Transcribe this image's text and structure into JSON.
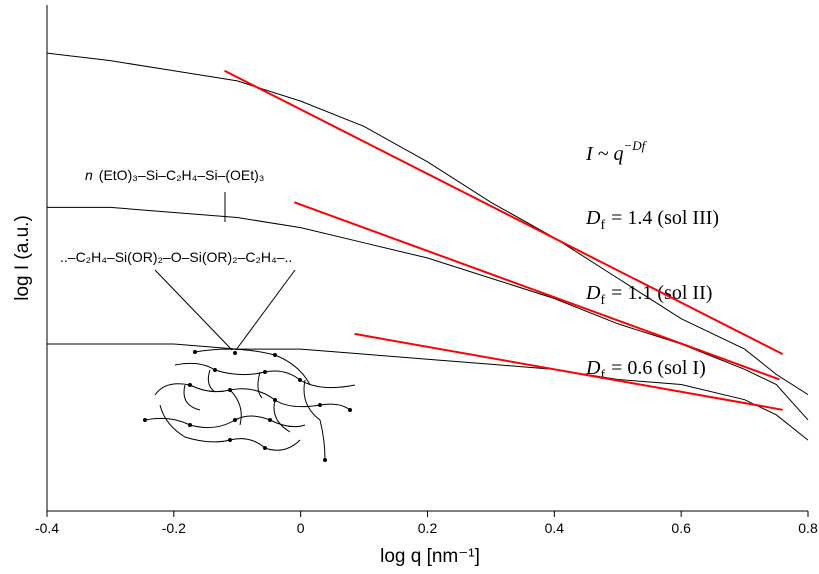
{
  "chart_data": {
    "type": "line",
    "xlabel": "log q [nm⁻¹]",
    "ylabel": "log I (a.u.)",
    "xlim": [
      -0.4,
      0.8
    ],
    "xticks": [
      -0.4,
      -0.2,
      0,
      0.2,
      0.4,
      0.6,
      0.8
    ],
    "ylim": [
      0,
      1
    ],
    "series": [
      {
        "color": "#000000",
        "x": [
          -0.4,
          -0.3,
          -0.2,
          -0.1,
          0,
          0.1,
          0.2,
          0.3,
          0.4,
          0.5,
          0.6,
          0.7,
          0.75,
          0.8
        ],
        "values": [
          0.905,
          0.89,
          0.87,
          0.85,
          0.81,
          0.76,
          0.69,
          0.61,
          0.54,
          0.46,
          0.38,
          0.32,
          0.27,
          0.23
        ]
      },
      {
        "color": "#000000",
        "x": [
          -0.4,
          -0.3,
          -0.2,
          -0.1,
          0,
          0.1,
          0.2,
          0.3,
          0.4,
          0.5,
          0.6,
          0.7,
          0.75,
          0.8
        ],
        "values": [
          0.6,
          0.6,
          0.59,
          0.58,
          0.56,
          0.53,
          0.5,
          0.46,
          0.42,
          0.37,
          0.33,
          0.28,
          0.25,
          0.18
        ]
      },
      {
        "color": "#000000",
        "x": [
          -0.4,
          -0.3,
          -0.2,
          -0.1,
          0,
          0.1,
          0.2,
          0.3,
          0.4,
          0.5,
          0.6,
          0.7,
          0.75,
          0.8
        ],
        "values": [
          0.33,
          0.33,
          0.33,
          0.32,
          0.32,
          0.31,
          0.3,
          0.29,
          0.28,
          0.26,
          0.25,
          0.22,
          0.19,
          0.14
        ]
      },
      {
        "color": "#ff0000",
        "x": [
          -0.12,
          0.76
        ],
        "values": [
          0.87,
          0.31
        ]
      },
      {
        "color": "#ff0000",
        "x": [
          -0.01,
          0.755
        ],
        "values": [
          0.61,
          0.26
        ]
      },
      {
        "color": "#ff0000",
        "x": [
          0.085,
          0.76
        ],
        "values": [
          0.35,
          0.2
        ]
      }
    ],
    "annotations": {
      "power_law": {
        "base": "I ~ q",
        "exponent": "−Df"
      },
      "fits": [
        {
          "symbol": "D",
          "subscript": "f",
          "text": "= 1.4 (sol III)"
        },
        {
          "symbol": "D",
          "subscript": "f",
          "text": "= 1.1 (sol II)"
        },
        {
          "symbol": "D",
          "subscript": "f",
          "text": "= 0.6 (sol I)"
        }
      ],
      "precursor": {
        "n": "n",
        "formula": "(EtO)₃–Si–C₂H₄–Si–(OEt)₃"
      },
      "chain": "..–C₂H₄–Si(OR)₂–O–Si(OR)₂–C₂H₄–.."
    }
  }
}
